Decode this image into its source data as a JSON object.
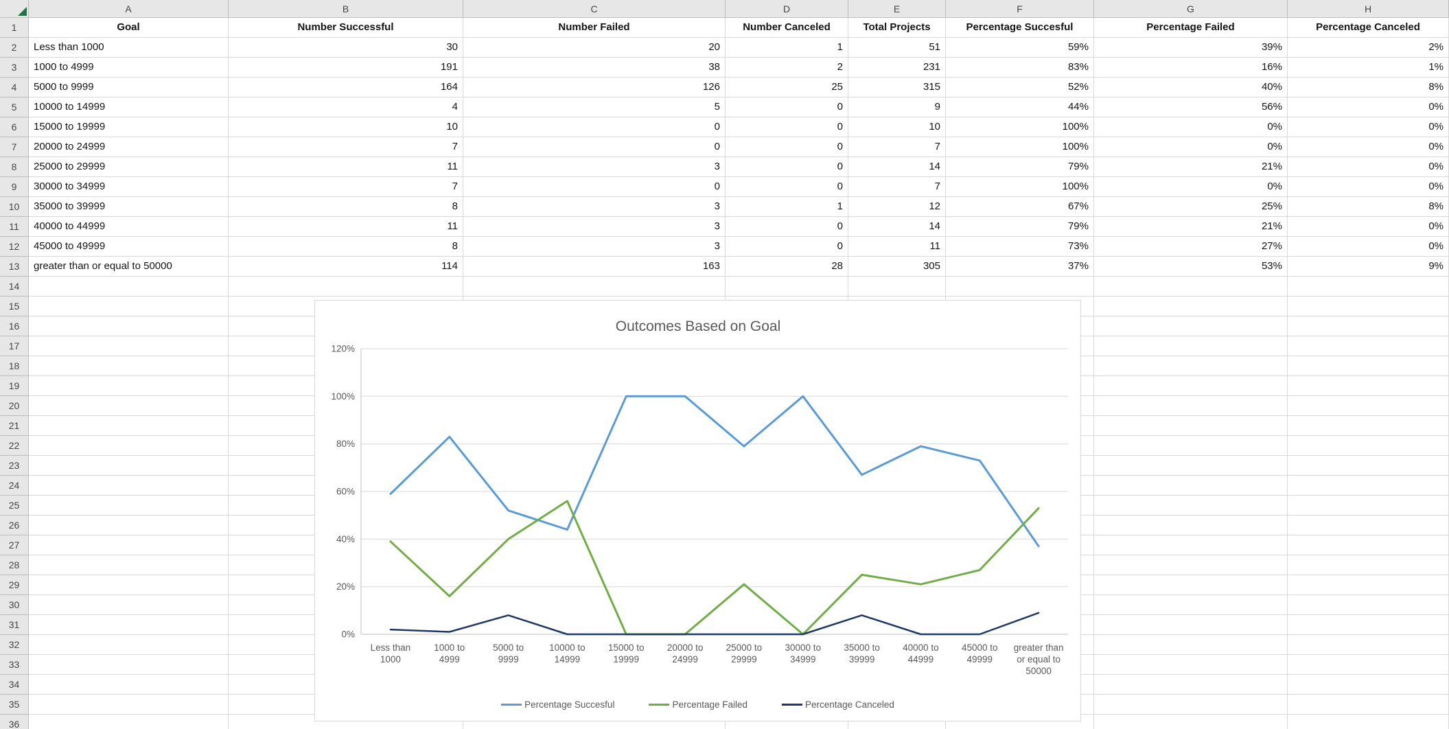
{
  "sheet": {
    "columns": [
      "A",
      "B",
      "C",
      "D",
      "E",
      "F",
      "G",
      "H"
    ],
    "row_count": 36
  },
  "table": {
    "headers": [
      "Goal",
      "Number Successful",
      "Number Failed",
      "Number Canceled",
      "Total Projects",
      "Percentage Succesful",
      "Percentage Failed",
      "Percentage Canceled"
    ],
    "rows": [
      [
        "Less than 1000",
        "30",
        "20",
        "1",
        "51",
        "59%",
        "39%",
        "2%"
      ],
      [
        "1000 to 4999",
        "191",
        "38",
        "2",
        "231",
        "83%",
        "16%",
        "1%"
      ],
      [
        "5000 to 9999",
        "164",
        "126",
        "25",
        "315",
        "52%",
        "40%",
        "8%"
      ],
      [
        "10000 to 14999",
        "4",
        "5",
        "0",
        "9",
        "44%",
        "56%",
        "0%"
      ],
      [
        "15000 to 19999",
        "10",
        "0",
        "0",
        "10",
        "100%",
        "0%",
        "0%"
      ],
      [
        "20000 to 24999",
        "7",
        "0",
        "0",
        "7",
        "100%",
        "0%",
        "0%"
      ],
      [
        "25000 to 29999",
        "11",
        "3",
        "0",
        "14",
        "79%",
        "21%",
        "0%"
      ],
      [
        "30000 to 34999",
        "7",
        "0",
        "0",
        "7",
        "100%",
        "0%",
        "0%"
      ],
      [
        "35000 to 39999",
        "8",
        "3",
        "1",
        "12",
        "67%",
        "25%",
        "8%"
      ],
      [
        "40000 to 44999",
        "11",
        "3",
        "0",
        "14",
        "79%",
        "21%",
        "0%"
      ],
      [
        "45000 to 49999",
        "8",
        "3",
        "0",
        "11",
        "73%",
        "27%",
        "0%"
      ],
      [
        "greater than or equal to 50000",
        "114",
        "163",
        "28",
        "305",
        "37%",
        "53%",
        "9%"
      ]
    ]
  },
  "chart_data": {
    "type": "line",
    "title": "Outcomes Based on Goal",
    "categories": [
      "Less than 1000",
      "1000 to 4999",
      "5000 to 9999",
      "10000 to 14999",
      "15000 to 19999",
      "20000 to 24999",
      "25000 to 29999",
      "30000 to 34999",
      "35000 to 39999",
      "40000 to 44999",
      "45000 to 49999",
      "greater than or equal to 50000"
    ],
    "tick_lines": [
      [
        "Less than",
        "1000"
      ],
      [
        "1000 to",
        "4999"
      ],
      [
        "5000 to",
        "9999"
      ],
      [
        "10000 to",
        "14999"
      ],
      [
        "15000 to",
        "19999"
      ],
      [
        "20000 to",
        "24999"
      ],
      [
        "25000 to",
        "29999"
      ],
      [
        "30000 to",
        "34999"
      ],
      [
        "35000 to",
        "39999"
      ],
      [
        "40000 to",
        "44999"
      ],
      [
        "45000 to",
        "49999"
      ],
      [
        "greater than",
        "or equal to",
        "50000"
      ]
    ],
    "series": [
      {
        "name": "Percentage Succesful",
        "color": "#5B9BD5",
        "values": [
          59,
          83,
          52,
          44,
          100,
          100,
          79,
          100,
          67,
          79,
          73,
          37
        ]
      },
      {
        "name": "Percentage Failed",
        "color": "#70AD47",
        "values": [
          39,
          16,
          40,
          56,
          0,
          0,
          21,
          0,
          25,
          21,
          27,
          53
        ]
      },
      {
        "name": "Percentage Canceled",
        "color": "#1F3864",
        "values": [
          2,
          1,
          8,
          0,
          0,
          0,
          0,
          0,
          8,
          0,
          0,
          9
        ]
      }
    ],
    "ylim": [
      0,
      120
    ],
    "yticks": [
      {
        "v": 0,
        "label": "0%"
      },
      {
        "v": 20,
        "label": "20%"
      },
      {
        "v": 40,
        "label": "40%"
      },
      {
        "v": 60,
        "label": "60%"
      },
      {
        "v": 80,
        "label": "80%"
      },
      {
        "v": 100,
        "label": "100%"
      },
      {
        "v": 120,
        "label": "120%"
      }
    ],
    "grid": true,
    "legend_position": "bottom",
    "colors": {
      "grid": "#D9D9D9",
      "axis": "#BFBFBF",
      "text": "#595959",
      "title": "#595959",
      "border": "#D9D9D9",
      "background": "#FFFFFF"
    }
  }
}
